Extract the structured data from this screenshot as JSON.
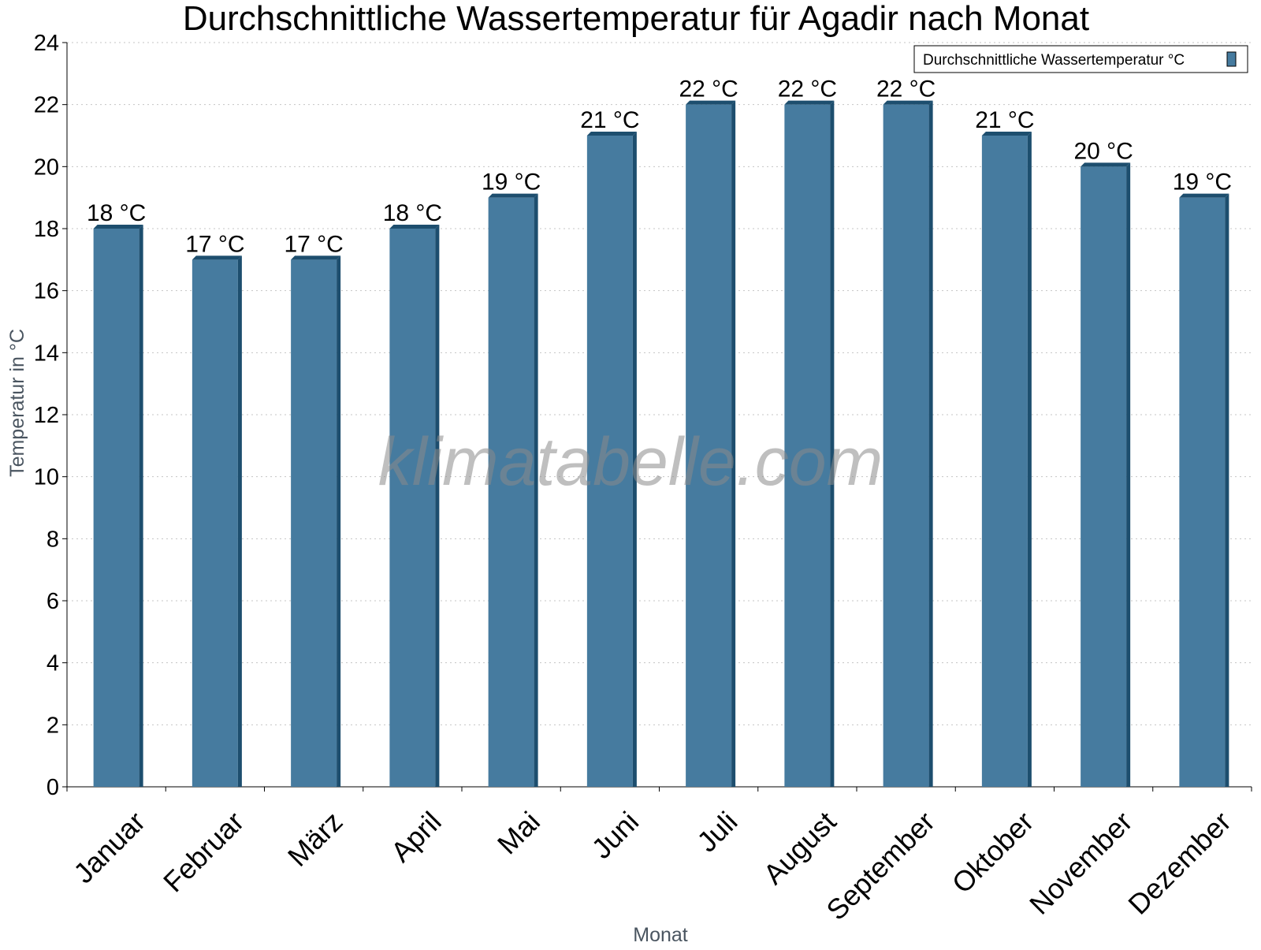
{
  "chart_data": {
    "type": "bar",
    "title": "Durchschnittliche Wassertemperatur für Agadir nach Monat",
    "xlabel": "Monat",
    "ylabel": "Temperatur in °C",
    "categories": [
      "Januar",
      "Februar",
      "März",
      "April",
      "Mai",
      "Juni",
      "Juli",
      "August",
      "September",
      "Oktober",
      "November",
      "Dezember"
    ],
    "series": [
      {
        "name": "Durchschnittliche Wassertemperatur °C",
        "values": [
          18,
          17,
          17,
          18,
          19,
          21,
          22,
          22,
          22,
          21,
          20,
          19
        ],
        "color": "#467b9f",
        "side_color": "#1d4e6e"
      }
    ],
    "data_labels": [
      "18 °C",
      "17 °C",
      "17 °C",
      "18 °C",
      "19 °C",
      "21 °C",
      "22 °C",
      "22 °C",
      "22 °C",
      "21 °C",
      "20 °C",
      "19 °C"
    ],
    "ylim": [
      0,
      24
    ],
    "yticks": [
      0,
      2,
      4,
      6,
      8,
      10,
      12,
      14,
      16,
      18,
      20,
      22,
      24
    ],
    "grid": true,
    "legend_position": "top-right"
  },
  "watermark": "klimatabelle.com"
}
